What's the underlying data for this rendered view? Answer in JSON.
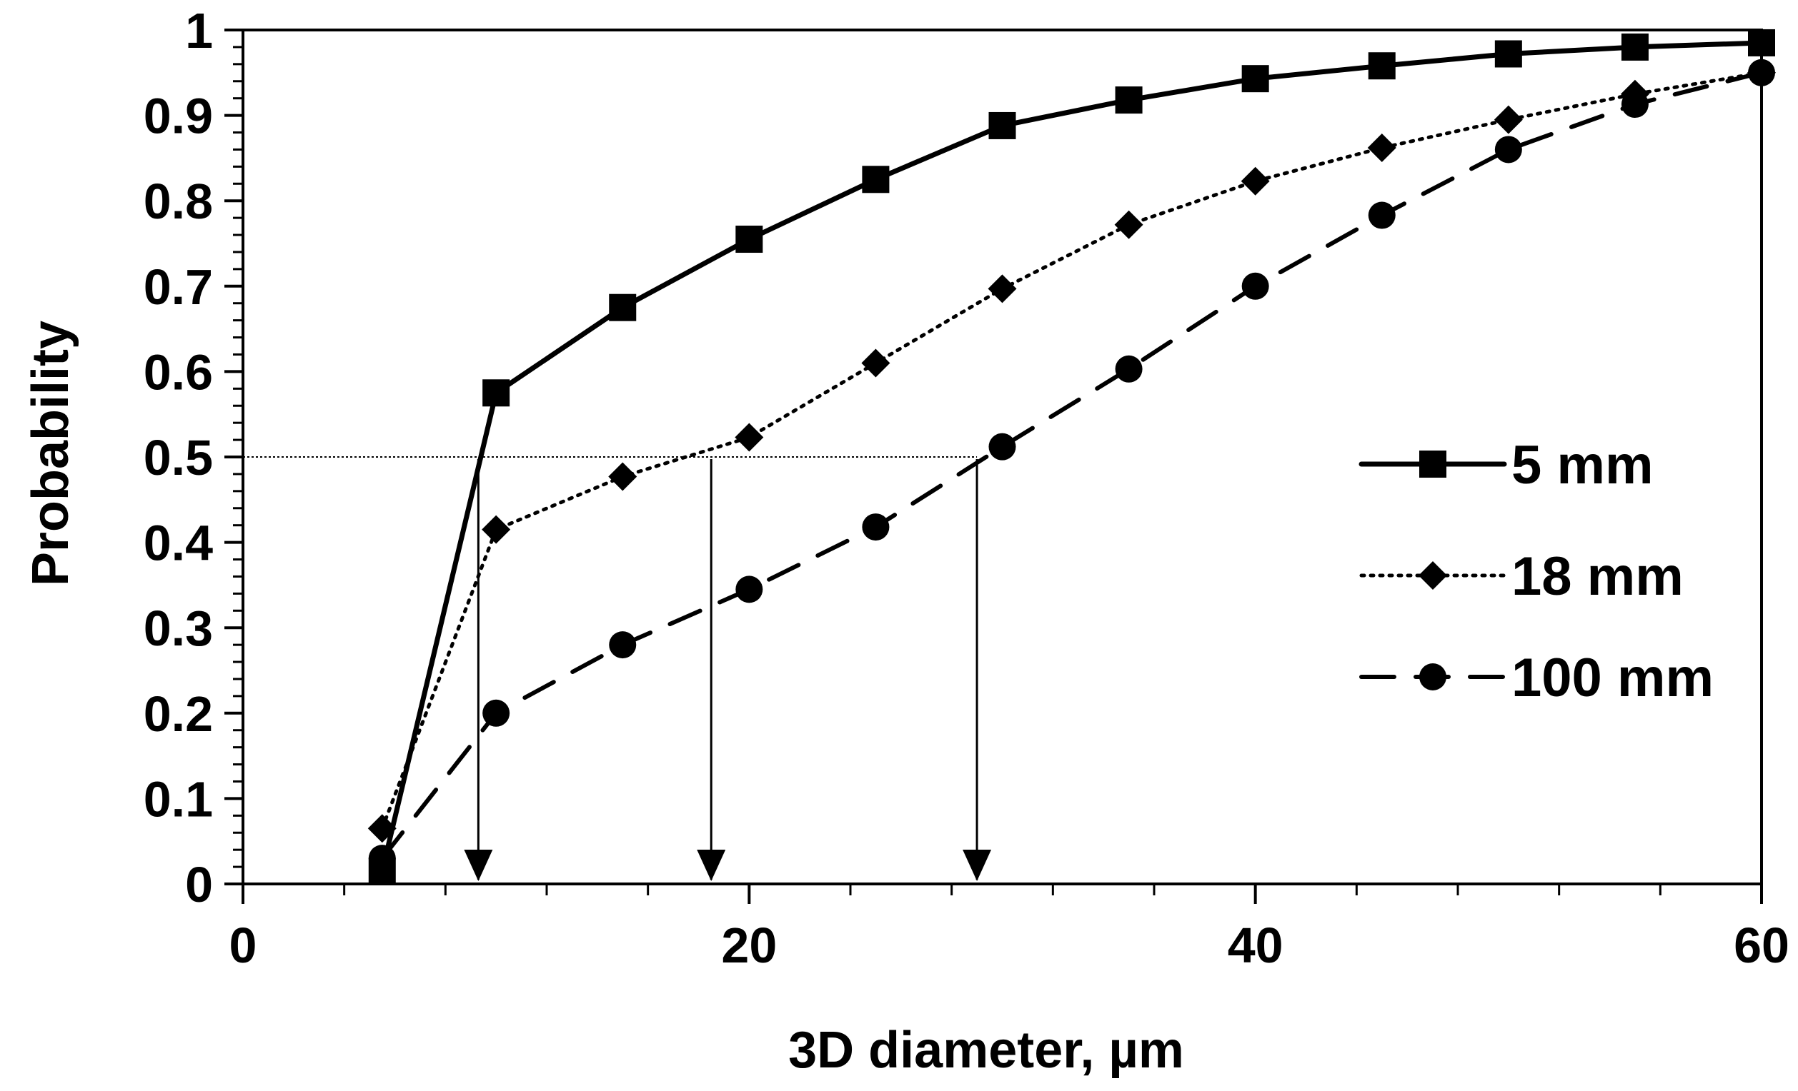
{
  "chart_data": {
    "type": "line",
    "title": "",
    "xlabel": "3D diameter, µm",
    "ylabel": "Probability",
    "xlim": [
      0,
      60
    ],
    "ylim": [
      0,
      1
    ],
    "xticks": [
      0,
      20,
      40,
      60
    ],
    "yticks": [
      0,
      0.1,
      0.2,
      0.3,
      0.4,
      0.5,
      0.6,
      0.7,
      0.8,
      0.9,
      1
    ],
    "xtick_labels": [
      "0",
      "20",
      "40",
      "60"
    ],
    "ytick_labels": [
      "0",
      "0.1",
      "0.2",
      "0.3",
      "0.4",
      "0.5",
      "0.6",
      "0.7",
      "0.8",
      "0.9",
      "1"
    ],
    "x_minor_step": 4,
    "y_minor_step": 0.02,
    "grid": false,
    "legend_position": "right",
    "series": [
      {
        "name": "5 mm",
        "marker": "square",
        "line_style": "solid",
        "x": [
          5.5,
          10,
          15,
          20,
          25,
          30,
          35,
          40,
          45,
          50,
          55,
          60
        ],
        "y": [
          0.015,
          0.575,
          0.675,
          0.755,
          0.825,
          0.888,
          0.918,
          0.943,
          0.958,
          0.972,
          0.98,
          0.985
        ]
      },
      {
        "name": "18 mm",
        "marker": "diamond",
        "line_style": "dotted",
        "x": [
          5.5,
          10,
          15,
          20,
          25,
          30,
          35,
          40,
          45,
          50,
          55,
          60
        ],
        "y": [
          0.065,
          0.415,
          0.477,
          0.523,
          0.61,
          0.697,
          0.772,
          0.823,
          0.862,
          0.895,
          0.925,
          0.95
        ]
      },
      {
        "name": "100 mm",
        "marker": "circle",
        "line_style": "dashed",
        "x": [
          5.5,
          10,
          15,
          20,
          25,
          30,
          35,
          40,
          45,
          50,
          55,
          60
        ],
        "y": [
          0.03,
          0.2,
          0.28,
          0.345,
          0.418,
          0.512,
          0.603,
          0.7,
          0.783,
          0.86,
          0.913,
          0.95
        ]
      }
    ],
    "annotations": {
      "reference_line_y": 0.5,
      "arrows_x": [
        9.3,
        18.5,
        29
      ]
    }
  }
}
